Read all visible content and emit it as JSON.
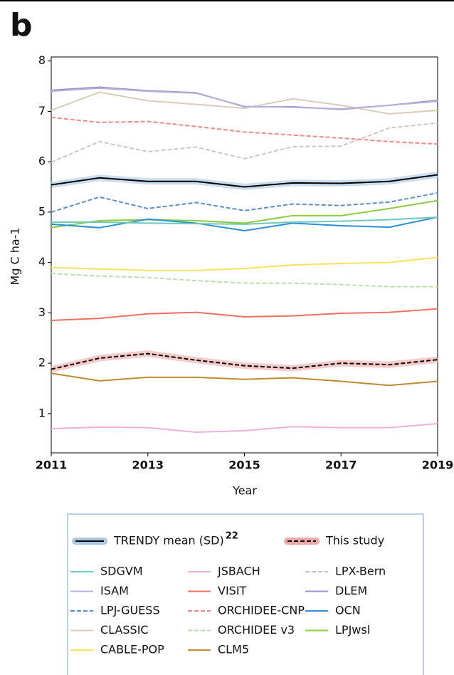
{
  "chart_data": {
    "type": "line",
    "panel_label": "b",
    "x_label": "Year",
    "y_label": "Mg C ha-1",
    "x": [
      2011,
      2012,
      2013,
      2014,
      2015,
      2016,
      2017,
      2018,
      2019
    ],
    "xlim": [
      2011,
      2019
    ],
    "xticks": [
      2011,
      2013,
      2015,
      2017,
      2019
    ],
    "ylim": [
      0.22,
      8.08
    ],
    "yticks": [
      1,
      2,
      3,
      4,
      5,
      6,
      7,
      8
    ],
    "series": [
      {
        "name": "TRENDY mean (SD)",
        "ref": "22",
        "color": "#000000",
        "band_color": "#a9c8e4",
        "dash": false,
        "values": [
          5.54,
          5.68,
          5.61,
          5.61,
          5.5,
          5.58,
          5.57,
          5.61,
          5.74
        ]
      },
      {
        "name": "This study",
        "color": "#000000",
        "band_color": "#f4a8a8",
        "dash": true,
        "values": [
          1.88,
          2.1,
          2.19,
          2.06,
          1.95,
          1.9,
          2.0,
          1.97,
          2.07
        ]
      },
      {
        "name": "SDGVM",
        "color": "#70c8b8",
        "dash": false,
        "values": [
          4.8,
          4.8,
          4.78,
          4.77,
          4.76,
          4.8,
          4.82,
          4.85,
          4.9
        ]
      },
      {
        "name": "ISAM",
        "color": "#b8b0dc",
        "dash": false,
        "values": [
          7.4,
          7.46,
          7.4,
          7.36,
          7.1,
          7.08,
          7.05,
          7.12,
          7.2
        ]
      },
      {
        "name": "LPJ-GUESS",
        "color": "#5a8fc8",
        "dash": true,
        "values": [
          5.0,
          5.3,
          5.07,
          5.19,
          5.03,
          5.16,
          5.13,
          5.2,
          5.38
        ]
      },
      {
        "name": "CLASSIC",
        "color": "#d9cdb8",
        "dash": false,
        "values": [
          7.02,
          7.38,
          7.21,
          7.14,
          7.06,
          7.25,
          7.12,
          6.95,
          7.02
        ]
      },
      {
        "name": "CABLE-POP",
        "color": "#f7e35a",
        "dash": false,
        "values": [
          3.9,
          3.87,
          3.84,
          3.84,
          3.88,
          3.95,
          3.98,
          4.0,
          4.1
        ]
      },
      {
        "name": "JSBACH",
        "color": "#f0b0d8",
        "dash": false,
        "values": [
          0.7,
          0.73,
          0.72,
          0.63,
          0.66,
          0.74,
          0.72,
          0.72,
          0.8
        ]
      },
      {
        "name": "VISIT",
        "color": "#f07060",
        "dash": false,
        "values": [
          2.85,
          2.89,
          2.98,
          3.01,
          2.92,
          2.94,
          2.99,
          3.01,
          3.08
        ]
      },
      {
        "name": "ORCHIDEE-CNP",
        "color": "#f08888",
        "dash": true,
        "values": [
          6.88,
          6.78,
          6.8,
          6.7,
          6.59,
          6.53,
          6.47,
          6.4,
          6.35
        ]
      },
      {
        "name": "ORCHIDEE v3",
        "color": "#b8e0a8",
        "dash": true,
        "values": [
          3.78,
          3.73,
          3.7,
          3.64,
          3.59,
          3.59,
          3.56,
          3.52,
          3.52
        ]
      },
      {
        "name": "CLM5",
        "color": "#c08a30",
        "dash": false,
        "values": [
          1.8,
          1.65,
          1.72,
          1.72,
          1.68,
          1.71,
          1.64,
          1.56,
          1.64
        ]
      },
      {
        "name": "LPX-Bern",
        "color": "#c8c8c8",
        "dash": true,
        "values": [
          5.99,
          6.4,
          6.2,
          6.29,
          6.06,
          6.3,
          6.31,
          6.67,
          6.77
        ]
      },
      {
        "name": "DLEM",
        "color": "#a090d0",
        "dash": false,
        "values": [
          7.42,
          7.48,
          7.41,
          7.37,
          7.09,
          7.09,
          7.04,
          7.12,
          7.22
        ]
      },
      {
        "name": "OCN",
        "color": "#2a90d8",
        "dash": false,
        "values": [
          4.76,
          4.69,
          4.86,
          4.78,
          4.63,
          4.78,
          4.73,
          4.7,
          4.9
        ]
      },
      {
        "name": "LPJwsl",
        "color": "#8ccc40",
        "dash": false,
        "values": [
          4.69,
          4.83,
          4.85,
          4.83,
          4.78,
          4.93,
          4.93,
          5.07,
          5.23
        ]
      }
    ]
  }
}
